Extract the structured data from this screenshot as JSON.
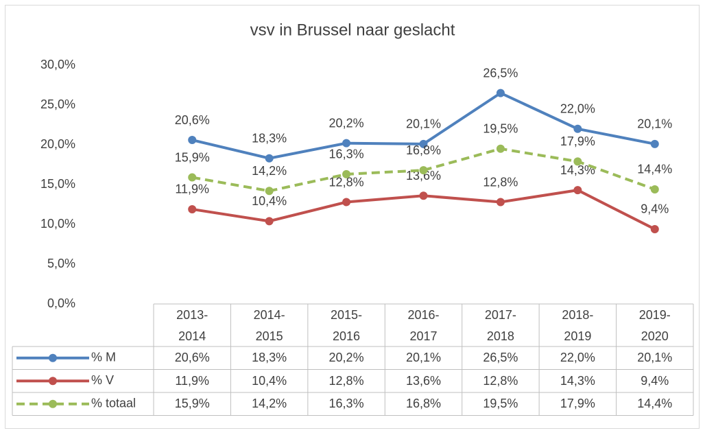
{
  "chart_data": {
    "type": "line",
    "title": "vsv in Brussel naar geslacht",
    "categories": [
      "2013-2014",
      "2014-2015",
      "2015-2016",
      "2016-2017",
      "2017-2018",
      "2018-2019",
      "2019-2020"
    ],
    "series": [
      {
        "name": "% M",
        "color": "#4f81bd",
        "values": [
          20.6,
          18.3,
          20.2,
          20.1,
          26.5,
          22.0,
          20.1
        ],
        "value_labels": [
          "20,6%",
          "18,3%",
          "20,2%",
          "20,1%",
          "26,5%",
          "22,0%",
          "20,1%"
        ]
      },
      {
        "name": "% V",
        "color": "#c0504d",
        "values": [
          11.9,
          10.4,
          12.8,
          13.6,
          12.8,
          14.3,
          9.4
        ],
        "value_labels": [
          "11,9%",
          "10,4%",
          "12,8%",
          "13,6%",
          "12,8%",
          "14,3%",
          "9,4%"
        ]
      },
      {
        "name": "% totaal",
        "color": "#9bbb59",
        "dashed": true,
        "values": [
          15.9,
          14.2,
          16.3,
          16.8,
          19.5,
          17.9,
          14.4
        ],
        "value_labels": [
          "15,9%",
          "14,2%",
          "16,3%",
          "16,8%",
          "19,5%",
          "17,9%",
          "14,4%"
        ]
      }
    ],
    "ylim": [
      0,
      30
    ],
    "yticks": [
      {
        "value": 0,
        "label": "0,0%"
      },
      {
        "value": 5,
        "label": "5,0%"
      },
      {
        "value": 10,
        "label": "10,0%"
      },
      {
        "value": 15,
        "label": "15,0%"
      },
      {
        "value": 20,
        "label": "20,0%"
      },
      {
        "value": 25,
        "label": "25,0%"
      },
      {
        "value": 30,
        "label": "30,0%"
      }
    ],
    "grid": false
  }
}
